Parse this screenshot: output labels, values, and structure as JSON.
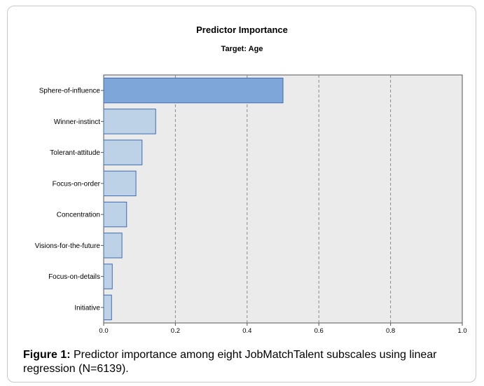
{
  "chart_data": {
    "type": "bar",
    "orientation": "horizontal",
    "title": "Predictor Importance",
    "subtitle": "Target: Age",
    "categories": [
      "Sphere-of-influence",
      "Winner-instinct",
      "Tolerant-attitude",
      "Focus-on-order",
      "Concentration",
      "Visions-for-the-future",
      "Focus-on-details",
      "Initiative"
    ],
    "values": [
      0.5,
      0.145,
      0.107,
      0.09,
      0.064,
      0.051,
      0.024,
      0.022
    ],
    "xlim": [
      0,
      1.0
    ],
    "xticks": [
      "0.0",
      "0.2",
      "0.4",
      "0.6",
      "0.8",
      "1.0"
    ],
    "grid": "vertical dashed",
    "colors": {
      "highlight": "#7ea6d8",
      "bar": "#bdd2e6",
      "bar_edge": "#3f6bb0",
      "plot_bg": "#ebebeb"
    }
  },
  "caption": {
    "label": "Figure 1:",
    "text": " Predictor importance among eight JobMatchTalent subscales using linear regression (N=6139)."
  }
}
